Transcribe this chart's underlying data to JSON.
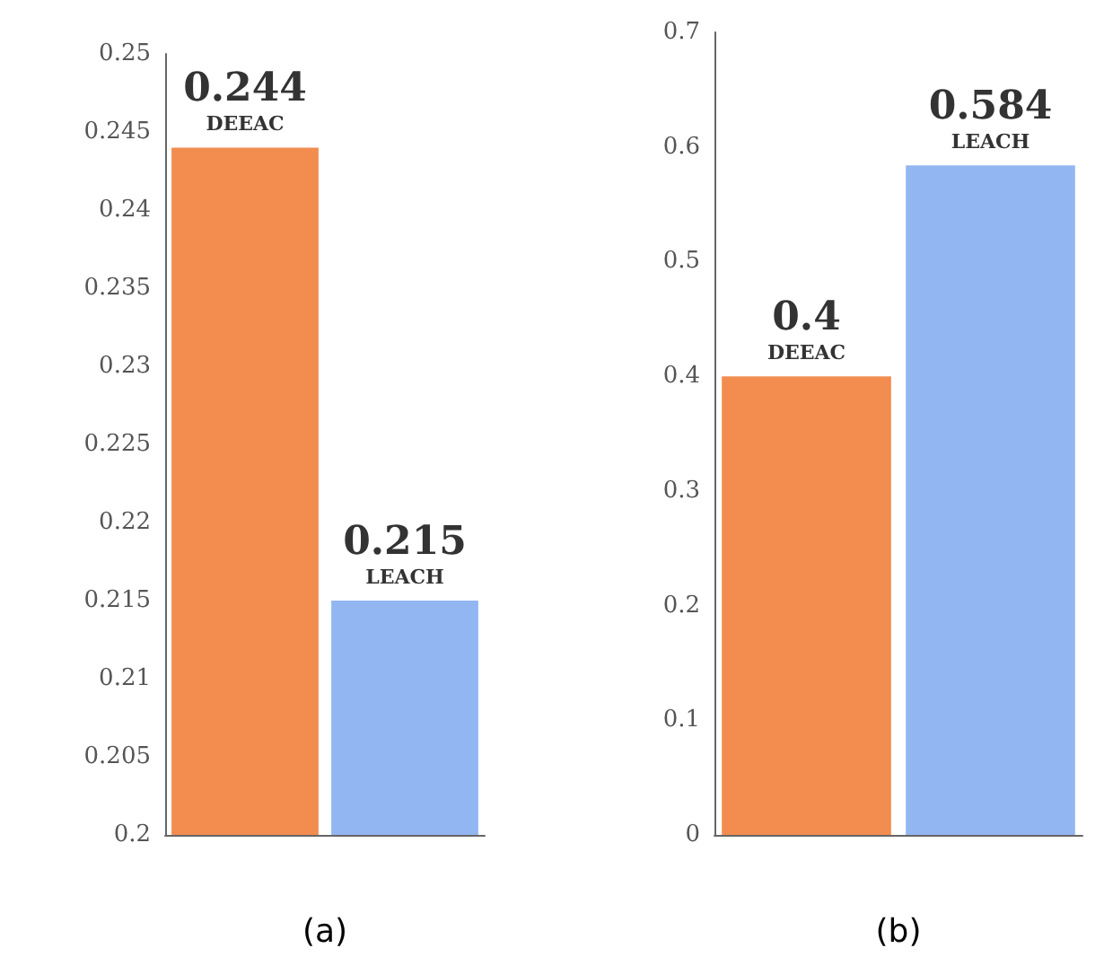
{
  "chart_data": [
    {
      "type": "bar",
      "xlabel": "(a)",
      "categories": [
        "DEEAC",
        "LEACH"
      ],
      "values": [
        0.244,
        0.215
      ],
      "colors": [
        "#f28c4f",
        "#92b6f2"
      ],
      "ylim": [
        0.2,
        0.25
      ],
      "yticks": [
        0.2,
        0.205,
        0.21,
        0.215,
        0.22,
        0.225,
        0.23,
        0.235,
        0.24,
        0.245,
        0.25
      ],
      "data_labels": true,
      "tick_labels": "y",
      "grid": false
    },
    {
      "type": "bar",
      "xlabel": "(b)",
      "categories": [
        "DEEAC",
        "LEACH"
      ],
      "values": [
        0.4,
        0.584
      ],
      "colors": [
        "#f28c4f",
        "#92b6f2"
      ],
      "ylim": [
        0,
        0.7
      ],
      "yticks": [
        0,
        0.1,
        0.2,
        0.3,
        0.4,
        0.5,
        0.6,
        0.7
      ],
      "data_labels": true,
      "tick_labels": "y",
      "grid": false
    }
  ]
}
